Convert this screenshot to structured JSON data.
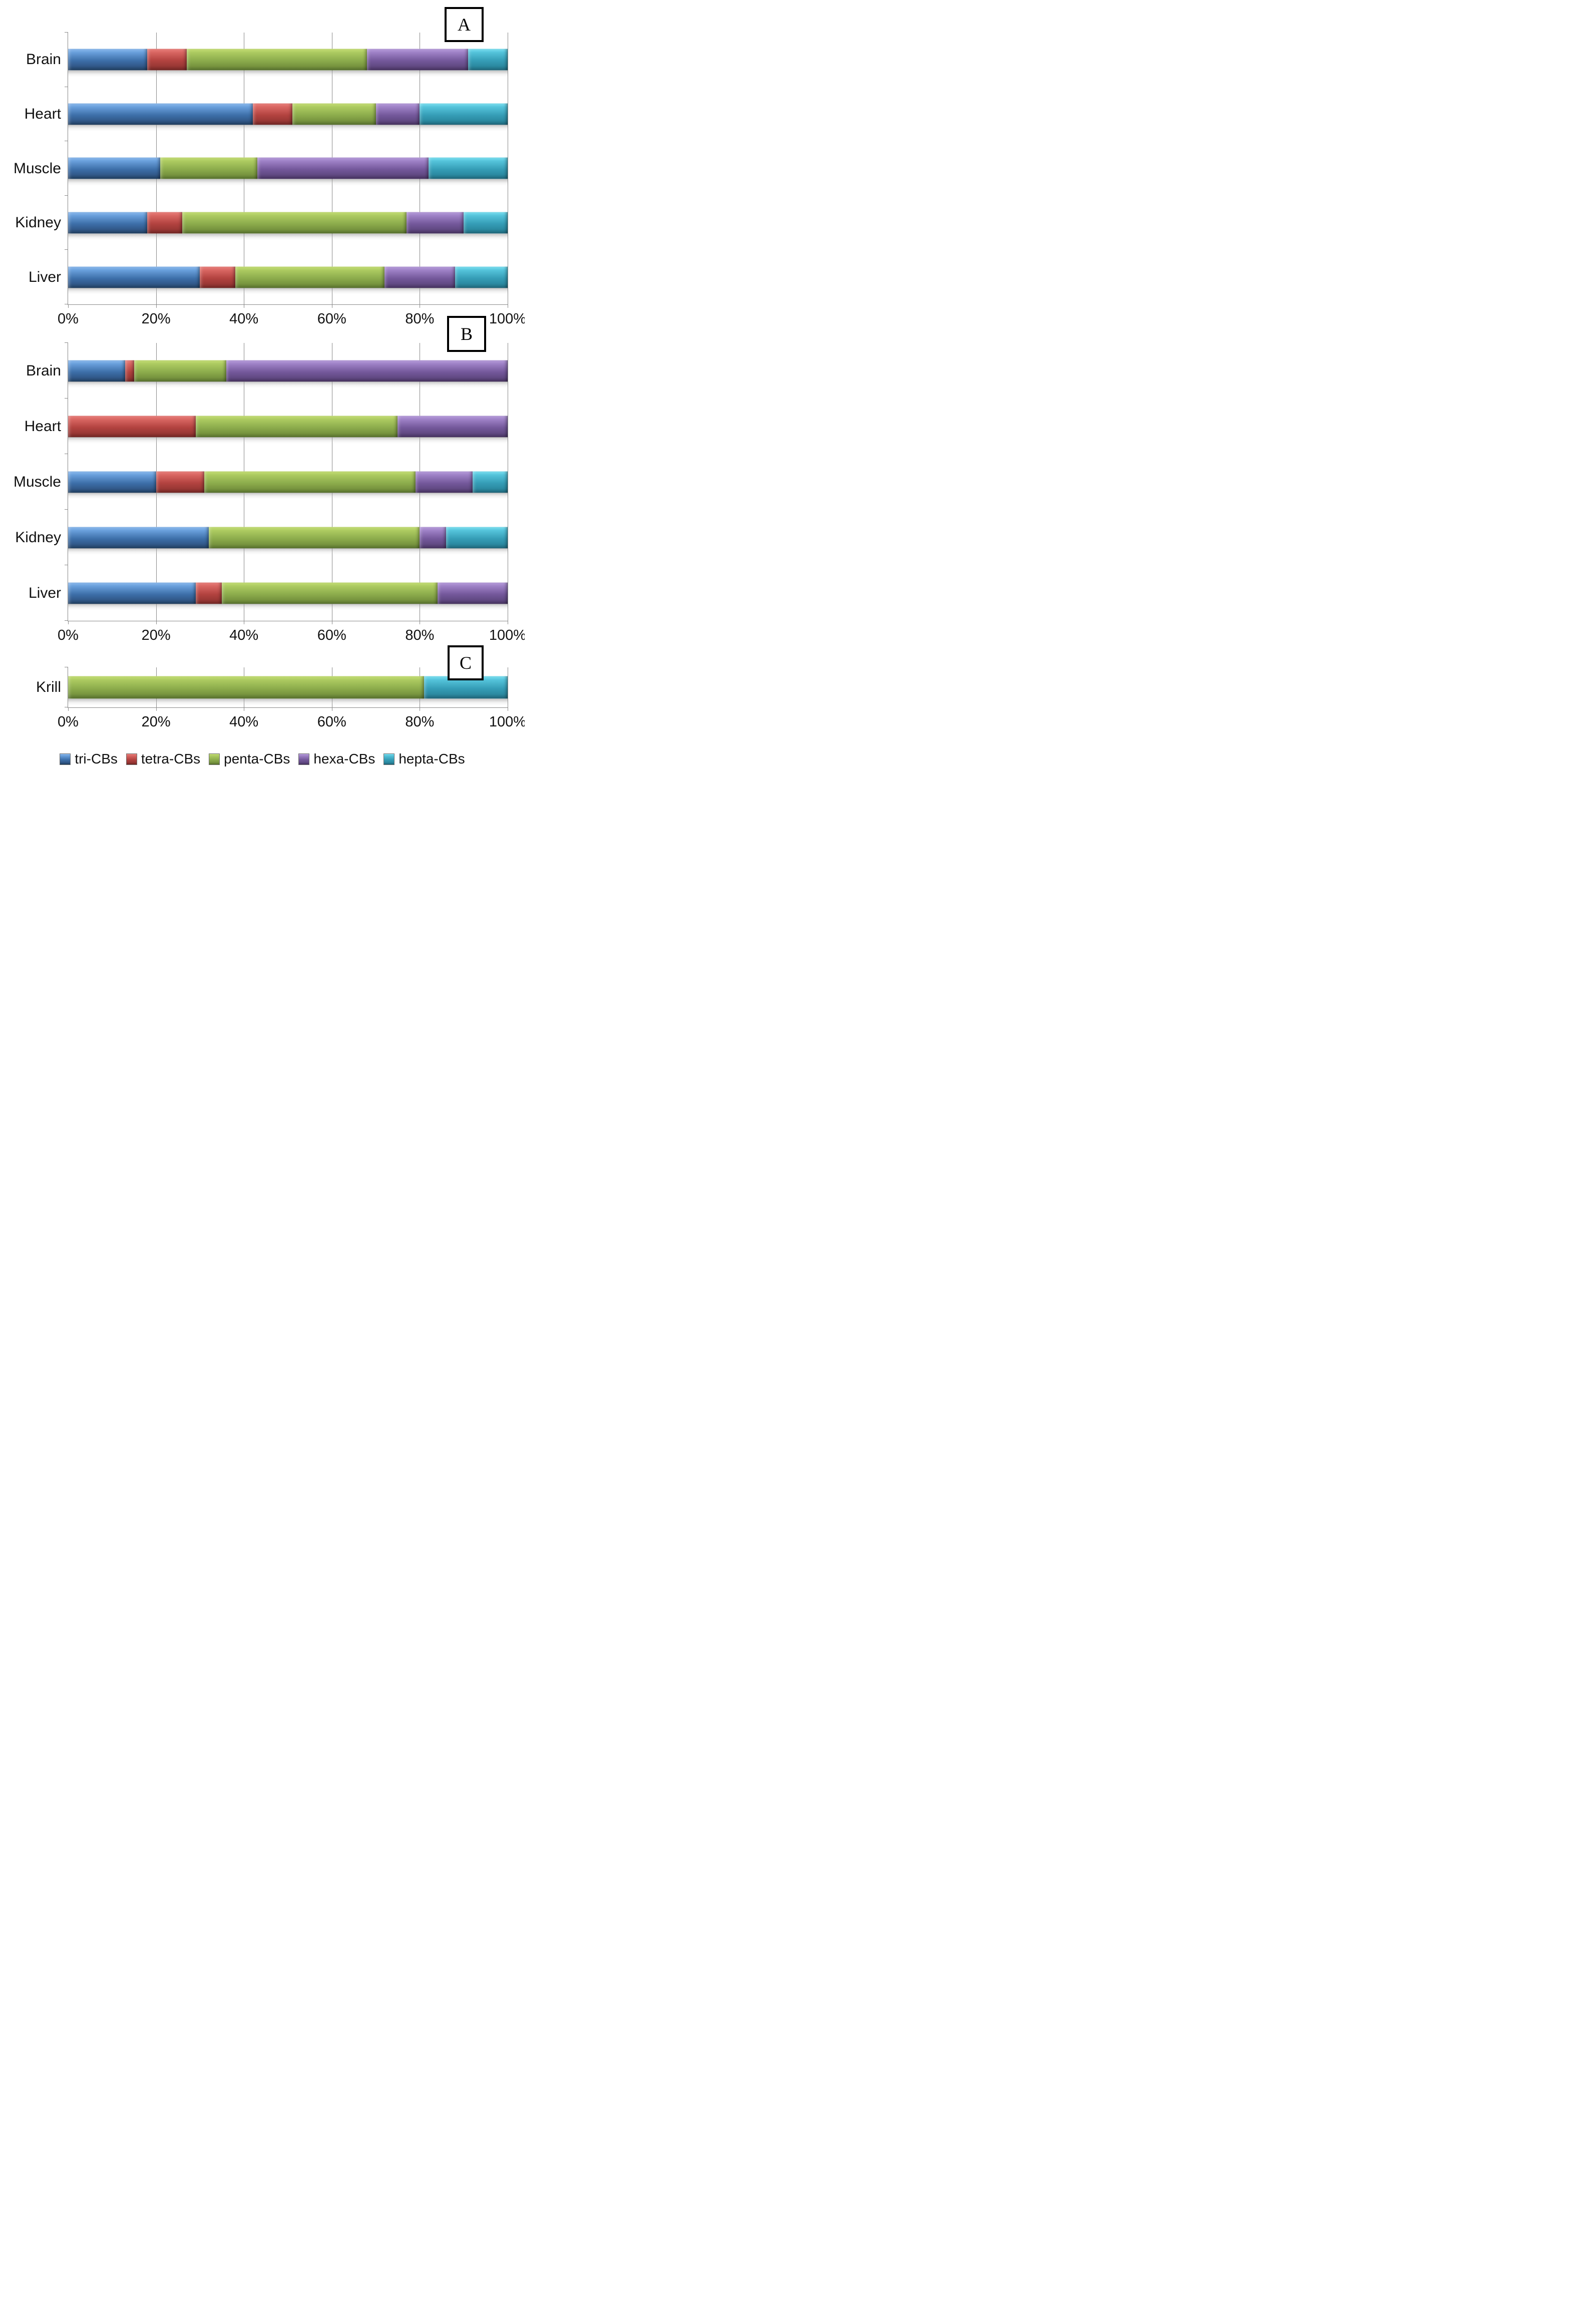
{
  "figure": {
    "description_text": "",
    "grid_color": "#8a8a8a",
    "background_color": "#ffffff"
  },
  "panels": [
    {
      "label": "A"
    },
    {
      "label": "B"
    },
    {
      "label": "C"
    }
  ],
  "series_colors": {
    "tri-CBs": "#3D6FA9",
    "tetra-CBs": "#B2423F",
    "penta-CBs": "#8CAC4C",
    "hexa-CBs": "#74589B",
    "hepta-CBs": "#359DB6"
  },
  "legend": {
    "items": [
      {
        "label": "tri-CBs",
        "color": "#3D6FA9"
      },
      {
        "label": "tetra-CBs",
        "color": "#B2423F"
      },
      {
        "label": "penta-CBs",
        "color": "#8CAC4C"
      },
      {
        "label": "hexa-CBs",
        "color": "#74589B"
      },
      {
        "label": "hepta-CBs",
        "color": "#359DB6"
      }
    ]
  },
  "chart_data": [
    {
      "type": "bar",
      "stacked": true,
      "orientation": "horizontal",
      "panel": "A",
      "title": "",
      "xlabel": "",
      "ylabel": "",
      "xlim": [
        0,
        100
      ],
      "xticks": [
        "0%",
        "20%",
        "40%",
        "60%",
        "80%",
        "100%"
      ],
      "grid": true,
      "categories": [
        "Brain",
        "Heart",
        "Muscle",
        "Kidney",
        "Liver"
      ],
      "series": [
        {
          "name": "tri-CBs",
          "values": [
            18,
            42,
            21,
            18,
            30
          ]
        },
        {
          "name": "tetra-CBs",
          "values": [
            9,
            9,
            0,
            8,
            8
          ]
        },
        {
          "name": "penta-CBs",
          "values": [
            41,
            19,
            22,
            51,
            34
          ]
        },
        {
          "name": "hexa-CBs",
          "values": [
            23,
            10,
            39,
            13,
            16
          ]
        },
        {
          "name": "hepta-CBs",
          "values": [
            9,
            20,
            18,
            10,
            12
          ]
        }
      ]
    },
    {
      "type": "bar",
      "stacked": true,
      "orientation": "horizontal",
      "panel": "B",
      "title": "",
      "xlabel": "",
      "ylabel": "",
      "xlim": [
        0,
        100
      ],
      "xticks": [
        "0%",
        "20%",
        "40%",
        "60%",
        "80%",
        "100%"
      ],
      "grid": true,
      "categories": [
        "Brain",
        "Heart",
        "Muscle",
        "Kidney",
        "Liver"
      ],
      "series": [
        {
          "name": "tri-CBs",
          "values": [
            13,
            0,
            20,
            32,
            29
          ]
        },
        {
          "name": "tetra-CBs",
          "values": [
            2,
            29,
            11,
            0,
            6
          ]
        },
        {
          "name": "penta-CBs",
          "values": [
            21,
            46,
            48,
            48,
            49
          ]
        },
        {
          "name": "hexa-CBs",
          "values": [
            64,
            25,
            13,
            6,
            16
          ]
        },
        {
          "name": "hepta-CBs",
          "values": [
            0,
            0,
            8,
            14,
            0
          ]
        }
      ]
    },
    {
      "type": "bar",
      "stacked": true,
      "orientation": "horizontal",
      "panel": "C",
      "title": "",
      "xlabel": "",
      "ylabel": "",
      "xlim": [
        0,
        100
      ],
      "xticks": [
        "0%",
        "20%",
        "40%",
        "60%",
        "80%",
        "100%"
      ],
      "grid": true,
      "categories": [
        "Krill"
      ],
      "series": [
        {
          "name": "tri-CBs",
          "values": [
            0
          ]
        },
        {
          "name": "tetra-CBs",
          "values": [
            0
          ]
        },
        {
          "name": "penta-CBs",
          "values": [
            81
          ]
        },
        {
          "name": "hexa-CBs",
          "values": [
            0
          ]
        },
        {
          "name": "hepta-CBs",
          "values": [
            19
          ]
        }
      ]
    }
  ]
}
